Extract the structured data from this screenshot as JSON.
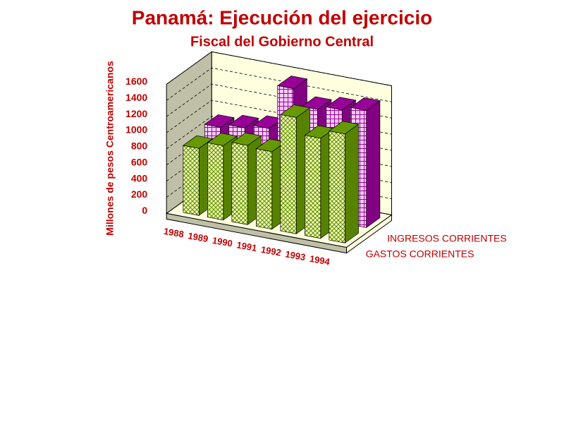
{
  "chart_data": {
    "type": "bar3d",
    "title": "Panamá: Ejecución del ejercicio",
    "subtitle": "Fiscal del Gobierno Central",
    "y_label": "Millones de pesos Centroamericanos",
    "categories": [
      "1988",
      "1989",
      "1990",
      "1991",
      "1992",
      "1993",
      "1994"
    ],
    "series": [
      {
        "name": "GASTOS CORRIENTES",
        "color": "#669900",
        "values": [
          830,
          920,
          980,
          960,
          1440,
          1240,
          1350
        ]
      },
      {
        "name": "INGRESOS CORRIENTES",
        "color": "#990099",
        "values": [
          900,
          950,
          1000,
          1550,
          1350,
          1400,
          1450
        ]
      }
    ],
    "ylim": [
      0,
      1600
    ],
    "yticks": [
      0,
      200,
      400,
      600,
      800,
      1000,
      1200,
      1400,
      1600
    ],
    "grid": true
  }
}
